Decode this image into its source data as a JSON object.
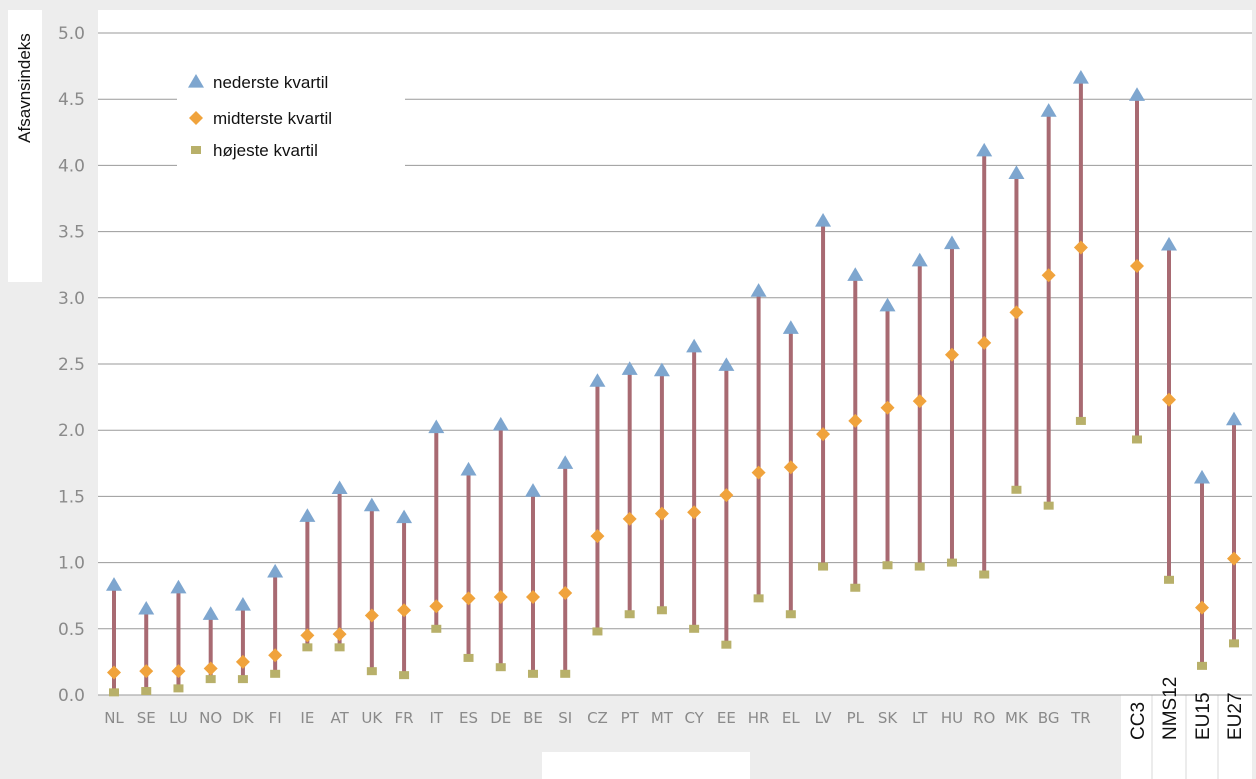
{
  "chart_data": {
    "type": "range",
    "ylabel": "Afsavnsindeks",
    "ylim": [
      0,
      5.0
    ],
    "yticks": [
      "0.0",
      "0.5",
      "1.0",
      "1.5",
      "2.0",
      "2.5",
      "3.0",
      "3.5",
      "4.0",
      "4.5",
      "5.0"
    ],
    "grid": true,
    "legend_position": "top-left",
    "categories": [
      "NL",
      "SE",
      "LU",
      "NO",
      "DK",
      "FI",
      "IE",
      "AT",
      "UK",
      "FR",
      "IT",
      "ES",
      "DE",
      "BE",
      "SI",
      "CZ",
      "PT",
      "MT",
      "CY",
      "EE",
      "HR",
      "EL",
      "LV",
      "PL",
      "SK",
      "LT",
      "HU",
      "RO",
      "MK",
      "BG",
      "TR",
      "CC3",
      "NMS12",
      "EU15",
      "EU27"
    ],
    "aggregate_categories": [
      "CC3",
      "NMS12",
      "EU15",
      "EU27"
    ],
    "series": [
      {
        "name": "nederste kvartil",
        "marker": "triangle",
        "color": "#7ea6cf",
        "values": [
          0.83,
          0.65,
          0.81,
          0.61,
          0.68,
          0.93,
          1.35,
          1.56,
          1.43,
          1.34,
          2.02,
          1.7,
          2.04,
          1.54,
          1.75,
          2.37,
          2.46,
          2.45,
          2.63,
          2.49,
          3.05,
          2.77,
          3.58,
          3.17,
          2.94,
          3.28,
          3.41,
          4.11,
          3.94,
          4.41,
          4.66,
          4.53,
          3.4,
          1.64,
          2.08
        ]
      },
      {
        "name": "midterste kvartil",
        "marker": "diamond",
        "color": "#f0a33c",
        "values": [
          0.17,
          0.18,
          0.18,
          0.2,
          0.25,
          0.3,
          0.45,
          0.46,
          0.6,
          0.64,
          0.67,
          0.73,
          0.74,
          0.74,
          0.77,
          1.2,
          1.33,
          1.37,
          1.38,
          1.51,
          1.68,
          1.72,
          1.97,
          2.07,
          2.17,
          2.22,
          2.57,
          2.66,
          2.89,
          3.17,
          3.38,
          3.24,
          2.23,
          0.66,
          1.03
        ]
      },
      {
        "name": "højeste kvartil",
        "marker": "square",
        "color": "#b8b06a",
        "values": [
          0.02,
          0.03,
          0.05,
          0.12,
          0.12,
          0.16,
          0.36,
          0.36,
          0.18,
          0.15,
          0.5,
          0.28,
          0.21,
          0.16,
          0.16,
          0.48,
          0.61,
          0.64,
          0.5,
          0.38,
          0.73,
          0.61,
          0.97,
          0.81,
          0.98,
          0.97,
          1.0,
          0.91,
          1.55,
          1.43,
          2.07,
          1.93,
          0.87,
          0.22,
          0.39
        ]
      }
    ],
    "range_bar_color": "#a86a72",
    "grid_color": "#9a9a9a"
  }
}
